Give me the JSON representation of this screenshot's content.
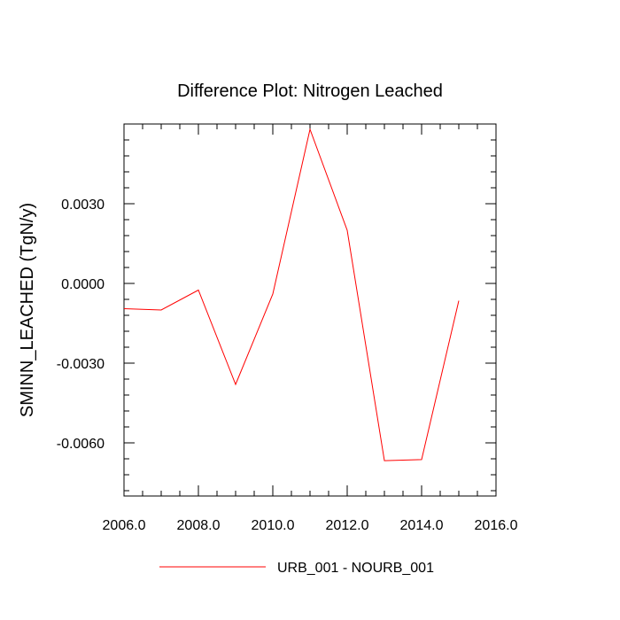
{
  "chart_data": {
    "type": "line",
    "title": "Difference Plot: Nitrogen Leached",
    "xlabel": "",
    "ylabel": "SMINN_LEACHED  (TgN/y)",
    "xlim": [
      2006.0,
      2016.0
    ],
    "ylim": [
      -0.008,
      0.006
    ],
    "x_ticks": [
      2006.0,
      2008.0,
      2010.0,
      2012.0,
      2014.0,
      2016.0
    ],
    "x_tick_labels": [
      "2006.0",
      "2008.0",
      "2010.0",
      "2012.0",
      "2014.0",
      "2016.0"
    ],
    "y_ticks": [
      0.003,
      0.0,
      -0.003,
      -0.006
    ],
    "y_tick_labels": [
      "0.0030",
      "0.0000",
      "-0.0030",
      "-0.0060"
    ],
    "grid": false,
    "legend_position": "bottom",
    "series": [
      {
        "name": "URB_001 - NOURB_001",
        "color": "#ff0000",
        "x": [
          2006,
          2007,
          2008,
          2009,
          2010,
          2011,
          2012,
          2013,
          2014,
          2015
        ],
        "y": [
          -0.00095,
          -0.001,
          -0.00025,
          -0.0038,
          -0.0004,
          0.0058,
          0.002,
          -0.00667,
          -0.00663,
          -0.00065
        ]
      }
    ]
  }
}
